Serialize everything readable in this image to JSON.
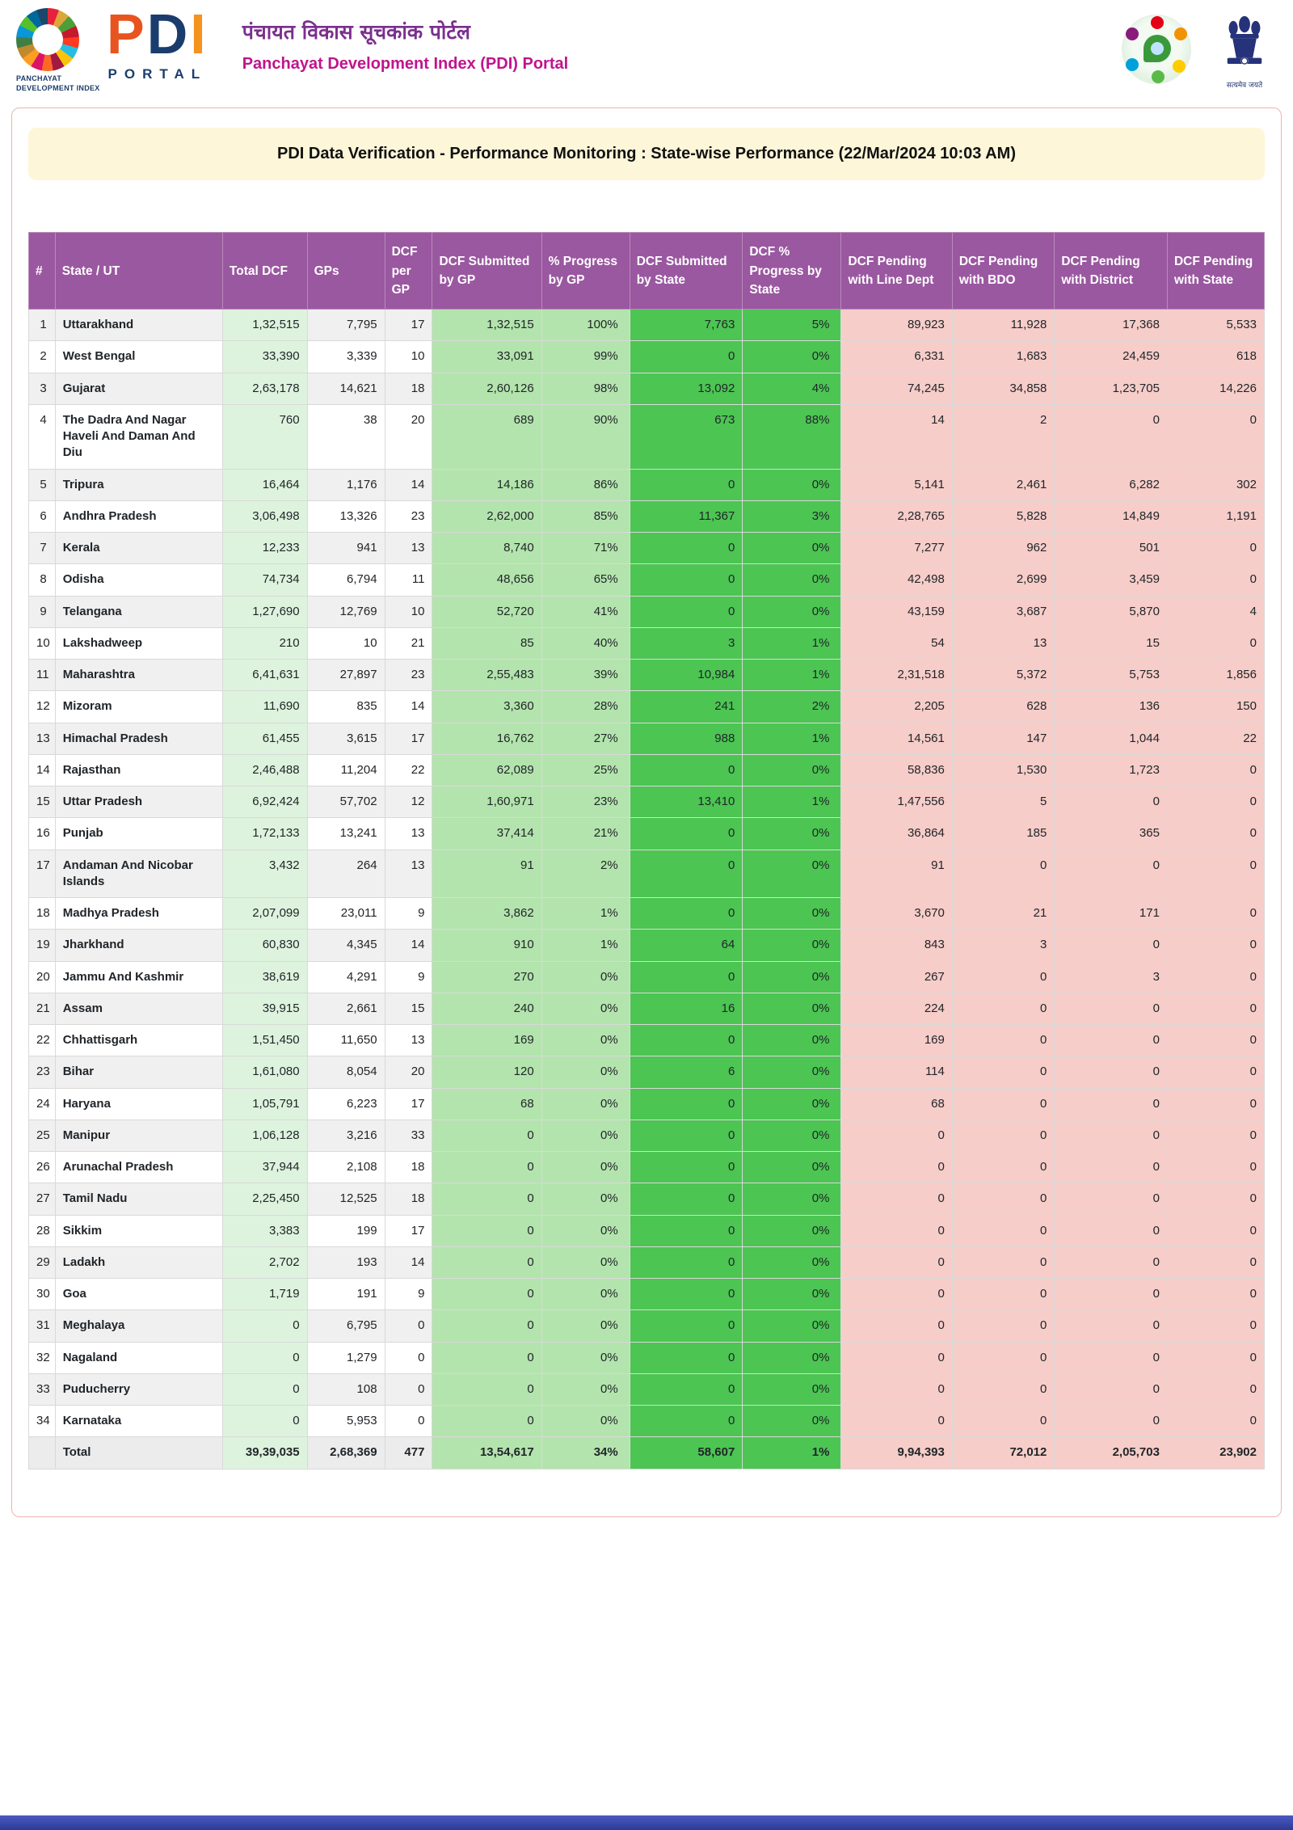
{
  "header": {
    "logo": {
      "letters": [
        "P",
        "D",
        "I"
      ],
      "portal": "PORTAL",
      "tagline": "PANCHAYAT DEVELOPMENT INDEX"
    },
    "title_hindi": "पंचायत विकास सूचकांक पोर्टल",
    "title_english": "Panchayat Development Index (PDI) Portal",
    "emblem_motto": "सत्यमेव जयते"
  },
  "report": {
    "title": "PDI Data Verification - Performance Monitoring : State-wise Performance (22/Mar/2024 10:03 AM)"
  },
  "colors": {
    "header_purple": "#9a58a0",
    "green_light": "#def3de",
    "green_medium": "#b3e4ad",
    "green_bright": "#4cc553",
    "pending_pink": "#f6cdc9",
    "title_cream": "#fdf6d9",
    "panel_border": "#efb3ae",
    "footer_blue": "#2c3a96"
  },
  "table": {
    "columns": [
      "#",
      "State / UT",
      "Total DCF",
      "GPs",
      "DCF per GP",
      "DCF Submitted by GP",
      "% Progress by GP",
      "DCF Submitted by State",
      "DCF % Progress by State",
      "DCF Pending with Line Dept",
      "DCF Pending with BDO",
      "DCF Pending with District",
      "DCF Pending with State"
    ],
    "rows": [
      [
        "1",
        "Uttarakhand",
        "1,32,515",
        "7,795",
        "17",
        "1,32,515",
        "100%",
        "7,763",
        "5%",
        "89,923",
        "11,928",
        "17,368",
        "5,533"
      ],
      [
        "2",
        "West Bengal",
        "33,390",
        "3,339",
        "10",
        "33,091",
        "99%",
        "0",
        "0%",
        "6,331",
        "1,683",
        "24,459",
        "618"
      ],
      [
        "3",
        "Gujarat",
        "2,63,178",
        "14,621",
        "18",
        "2,60,126",
        "98%",
        "13,092",
        "4%",
        "74,245",
        "34,858",
        "1,23,705",
        "14,226"
      ],
      [
        "4",
        "The Dadra And Nagar Haveli And Daman And Diu",
        "760",
        "38",
        "20",
        "689",
        "90%",
        "673",
        "88%",
        "14",
        "2",
        "0",
        "0"
      ],
      [
        "5",
        "Tripura",
        "16,464",
        "1,176",
        "14",
        "14,186",
        "86%",
        "0",
        "0%",
        "5,141",
        "2,461",
        "6,282",
        "302"
      ],
      [
        "6",
        "Andhra Pradesh",
        "3,06,498",
        "13,326",
        "23",
        "2,62,000",
        "85%",
        "11,367",
        "3%",
        "2,28,765",
        "5,828",
        "14,849",
        "1,191"
      ],
      [
        "7",
        "Kerala",
        "12,233",
        "941",
        "13",
        "8,740",
        "71%",
        "0",
        "0%",
        "7,277",
        "962",
        "501",
        "0"
      ],
      [
        "8",
        "Odisha",
        "74,734",
        "6,794",
        "11",
        "48,656",
        "65%",
        "0",
        "0%",
        "42,498",
        "2,699",
        "3,459",
        "0"
      ],
      [
        "9",
        "Telangana",
        "1,27,690",
        "12,769",
        "10",
        "52,720",
        "41%",
        "0",
        "0%",
        "43,159",
        "3,687",
        "5,870",
        "4"
      ],
      [
        "10",
        "Lakshadweep",
        "210",
        "10",
        "21",
        "85",
        "40%",
        "3",
        "1%",
        "54",
        "13",
        "15",
        "0"
      ],
      [
        "11",
        "Maharashtra",
        "6,41,631",
        "27,897",
        "23",
        "2,55,483",
        "39%",
        "10,984",
        "1%",
        "2,31,518",
        "5,372",
        "5,753",
        "1,856"
      ],
      [
        "12",
        "Mizoram",
        "11,690",
        "835",
        "14",
        "3,360",
        "28%",
        "241",
        "2%",
        "2,205",
        "628",
        "136",
        "150"
      ],
      [
        "13",
        "Himachal Pradesh",
        "61,455",
        "3,615",
        "17",
        "16,762",
        "27%",
        "988",
        "1%",
        "14,561",
        "147",
        "1,044",
        "22"
      ],
      [
        "14",
        "Rajasthan",
        "2,46,488",
        "11,204",
        "22",
        "62,089",
        "25%",
        "0",
        "0%",
        "58,836",
        "1,530",
        "1,723",
        "0"
      ],
      [
        "15",
        "Uttar Pradesh",
        "6,92,424",
        "57,702",
        "12",
        "1,60,971",
        "23%",
        "13,410",
        "1%",
        "1,47,556",
        "5",
        "0",
        "0"
      ],
      [
        "16",
        "Punjab",
        "1,72,133",
        "13,241",
        "13",
        "37,414",
        "21%",
        "0",
        "0%",
        "36,864",
        "185",
        "365",
        "0"
      ],
      [
        "17",
        "Andaman And Nicobar Islands",
        "3,432",
        "264",
        "13",
        "91",
        "2%",
        "0",
        "0%",
        "91",
        "0",
        "0",
        "0"
      ],
      [
        "18",
        "Madhya Pradesh",
        "2,07,099",
        "23,011",
        "9",
        "3,862",
        "1%",
        "0",
        "0%",
        "3,670",
        "21",
        "171",
        "0"
      ],
      [
        "19",
        "Jharkhand",
        "60,830",
        "4,345",
        "14",
        "910",
        "1%",
        "64",
        "0%",
        "843",
        "3",
        "0",
        "0"
      ],
      [
        "20",
        "Jammu And Kashmir",
        "38,619",
        "4,291",
        "9",
        "270",
        "0%",
        "0",
        "0%",
        "267",
        "0",
        "3",
        "0"
      ],
      [
        "21",
        "Assam",
        "39,915",
        "2,661",
        "15",
        "240",
        "0%",
        "16",
        "0%",
        "224",
        "0",
        "0",
        "0"
      ],
      [
        "22",
        "Chhattisgarh",
        "1,51,450",
        "11,650",
        "13",
        "169",
        "0%",
        "0",
        "0%",
        "169",
        "0",
        "0",
        "0"
      ],
      [
        "23",
        "Bihar",
        "1,61,080",
        "8,054",
        "20",
        "120",
        "0%",
        "6",
        "0%",
        "114",
        "0",
        "0",
        "0"
      ],
      [
        "24",
        "Haryana",
        "1,05,791",
        "6,223",
        "17",
        "68",
        "0%",
        "0",
        "0%",
        "68",
        "0",
        "0",
        "0"
      ],
      [
        "25",
        "Manipur",
        "1,06,128",
        "3,216",
        "33",
        "0",
        "0%",
        "0",
        "0%",
        "0",
        "0",
        "0",
        "0"
      ],
      [
        "26",
        "Arunachal Pradesh",
        "37,944",
        "2,108",
        "18",
        "0",
        "0%",
        "0",
        "0%",
        "0",
        "0",
        "0",
        "0"
      ],
      [
        "27",
        "Tamil Nadu",
        "2,25,450",
        "12,525",
        "18",
        "0",
        "0%",
        "0",
        "0%",
        "0",
        "0",
        "0",
        "0"
      ],
      [
        "28",
        "Sikkim",
        "3,383",
        "199",
        "17",
        "0",
        "0%",
        "0",
        "0%",
        "0",
        "0",
        "0",
        "0"
      ],
      [
        "29",
        "Ladakh",
        "2,702",
        "193",
        "14",
        "0",
        "0%",
        "0",
        "0%",
        "0",
        "0",
        "0",
        "0"
      ],
      [
        "30",
        "Goa",
        "1,719",
        "191",
        "9",
        "0",
        "0%",
        "0",
        "0%",
        "0",
        "0",
        "0",
        "0"
      ],
      [
        "31",
        "Meghalaya",
        "0",
        "6,795",
        "0",
        "0",
        "0%",
        "0",
        "0%",
        "0",
        "0",
        "0",
        "0"
      ],
      [
        "32",
        "Nagaland",
        "0",
        "1,279",
        "0",
        "0",
        "0%",
        "0",
        "0%",
        "0",
        "0",
        "0",
        "0"
      ],
      [
        "33",
        "Puducherry",
        "0",
        "108",
        "0",
        "0",
        "0%",
        "0",
        "0%",
        "0",
        "0",
        "0",
        "0"
      ],
      [
        "34",
        "Karnataka",
        "0",
        "5,953",
        "0",
        "0",
        "0%",
        "0",
        "0%",
        "0",
        "0",
        "0",
        "0"
      ]
    ],
    "total": [
      "",
      "Total",
      "39,39,035",
      "2,68,369",
      "477",
      "13,54,617",
      "34%",
      "58,607",
      "1%",
      "9,94,393",
      "72,012",
      "2,05,703",
      "23,902"
    ]
  }
}
